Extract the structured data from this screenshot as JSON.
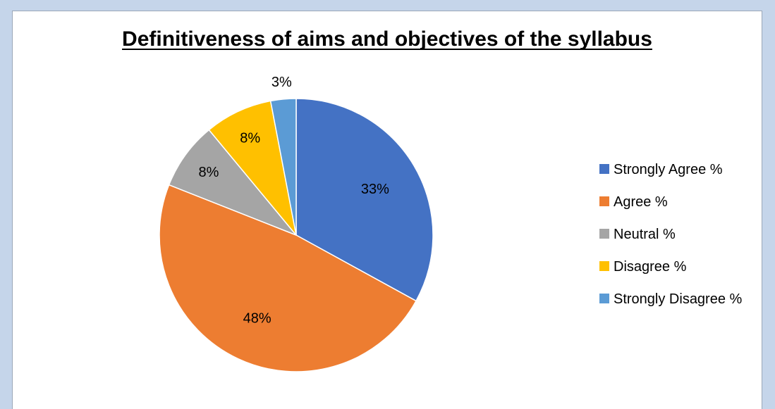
{
  "chart_data": {
    "type": "pie",
    "title": "Definitiveness of aims and objectives of the syllabus",
    "categories": [
      "Strongly Agree %",
      "Agree %",
      "Neutral %",
      "Disagree %",
      "Strongly Disagree %"
    ],
    "values": [
      33,
      48,
      8,
      8,
      3
    ],
    "data_labels": [
      "33%",
      "48%",
      "8%",
      "8%",
      "3%"
    ],
    "colors": [
      "#4472c4",
      "#ed7d31",
      "#a5a5a5",
      "#ffc000",
      "#5b9bd5"
    ],
    "legend_position": "right"
  }
}
